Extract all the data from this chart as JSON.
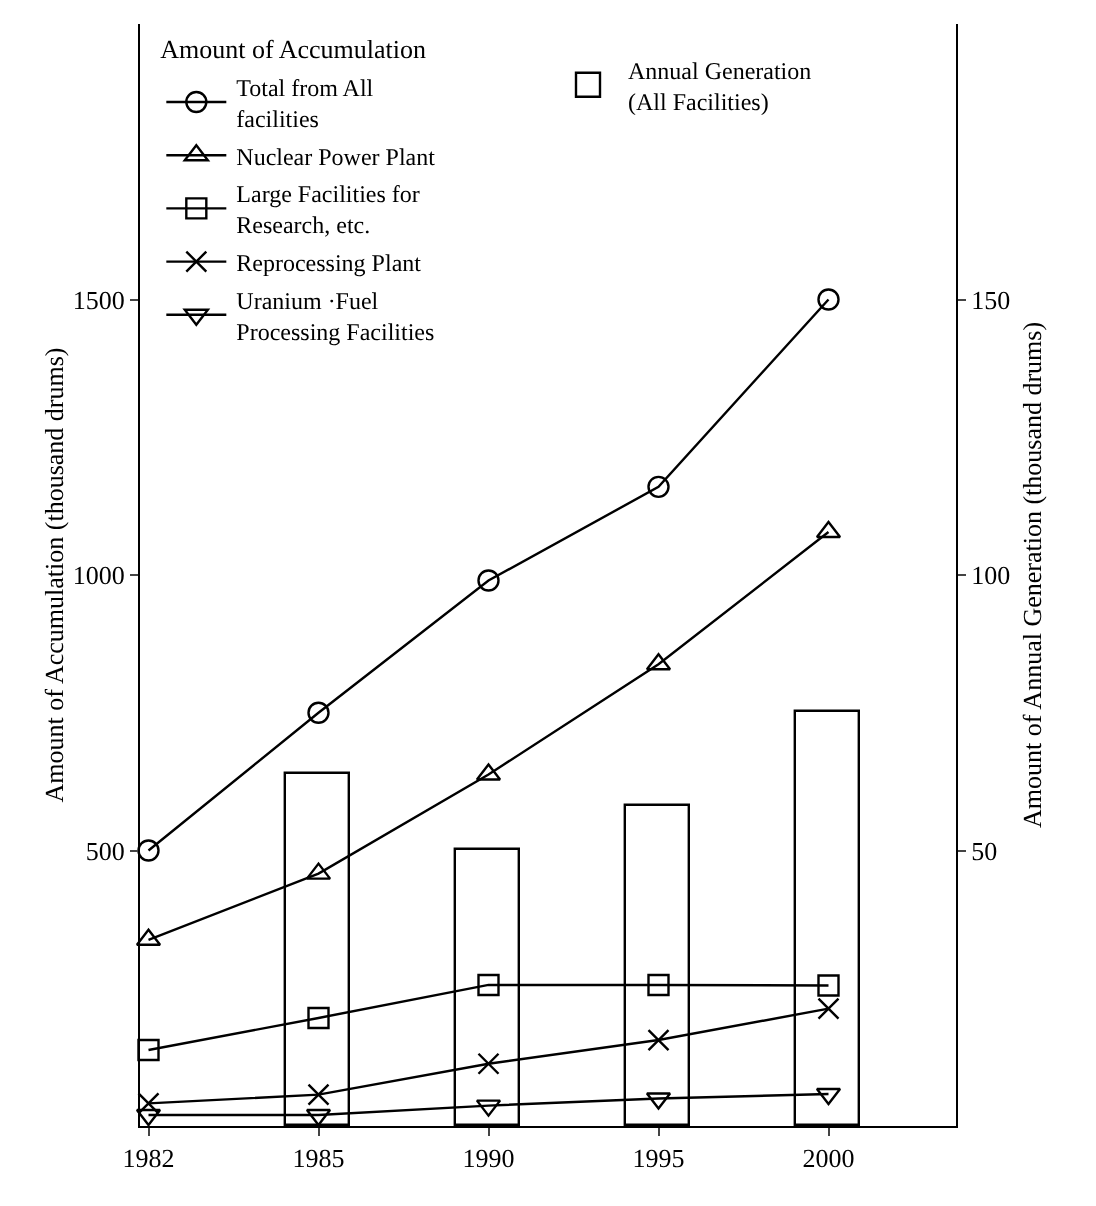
{
  "chart_data": {
    "type": "line",
    "ylabel": "Amount of Accumulation (thousand drums)",
    "y2label": "Amount of Annual Generation (thousand drums)",
    "legend_title": "Amount of Accumulation",
    "categories": [
      "1982",
      "1985",
      "1990",
      "1995",
      "2000"
    ],
    "ylim": [
      0,
      2000
    ],
    "yticks": [
      500,
      1000,
      1500
    ],
    "y2lim": [
      0,
      200
    ],
    "y2ticks": [
      50,
      100,
      150
    ],
    "grid": false,
    "legend": "top left",
    "line_style": "solid",
    "series": [
      {
        "name": "Annual Generation (All Facilities)",
        "type": "bar",
        "axis": "y2",
        "color": "#ffffff",
        "values": [
          null,
          64,
          50,
          58,
          75
        ]
      },
      {
        "name": "Total from All facilities",
        "color": "#000000",
        "marker": "circle",
        "values": [
          500,
          750,
          990,
          1160,
          1500
        ]
      },
      {
        "name": "Nuclear Power Plant",
        "color": "#000000",
        "marker": "triangle",
        "values": [
          338,
          458,
          638,
          838,
          1078
        ]
      },
      {
        "name": "Large Facilities for Research, etc.",
        "color": "#000000",
        "marker": "square",
        "values": [
          138,
          196,
          256,
          256,
          255
        ]
      },
      {
        "name": "Reprocessing Plant",
        "color": "#000000",
        "marker": "cross",
        "values": [
          41,
          57,
          113,
          156,
          213
        ]
      },
      {
        "name": "Uranium ·Fuel Processing Facilities",
        "color": "#000000",
        "marker": "triangle-down",
        "values": [
          20,
          20,
          37,
          50,
          58
        ]
      }
    ]
  }
}
